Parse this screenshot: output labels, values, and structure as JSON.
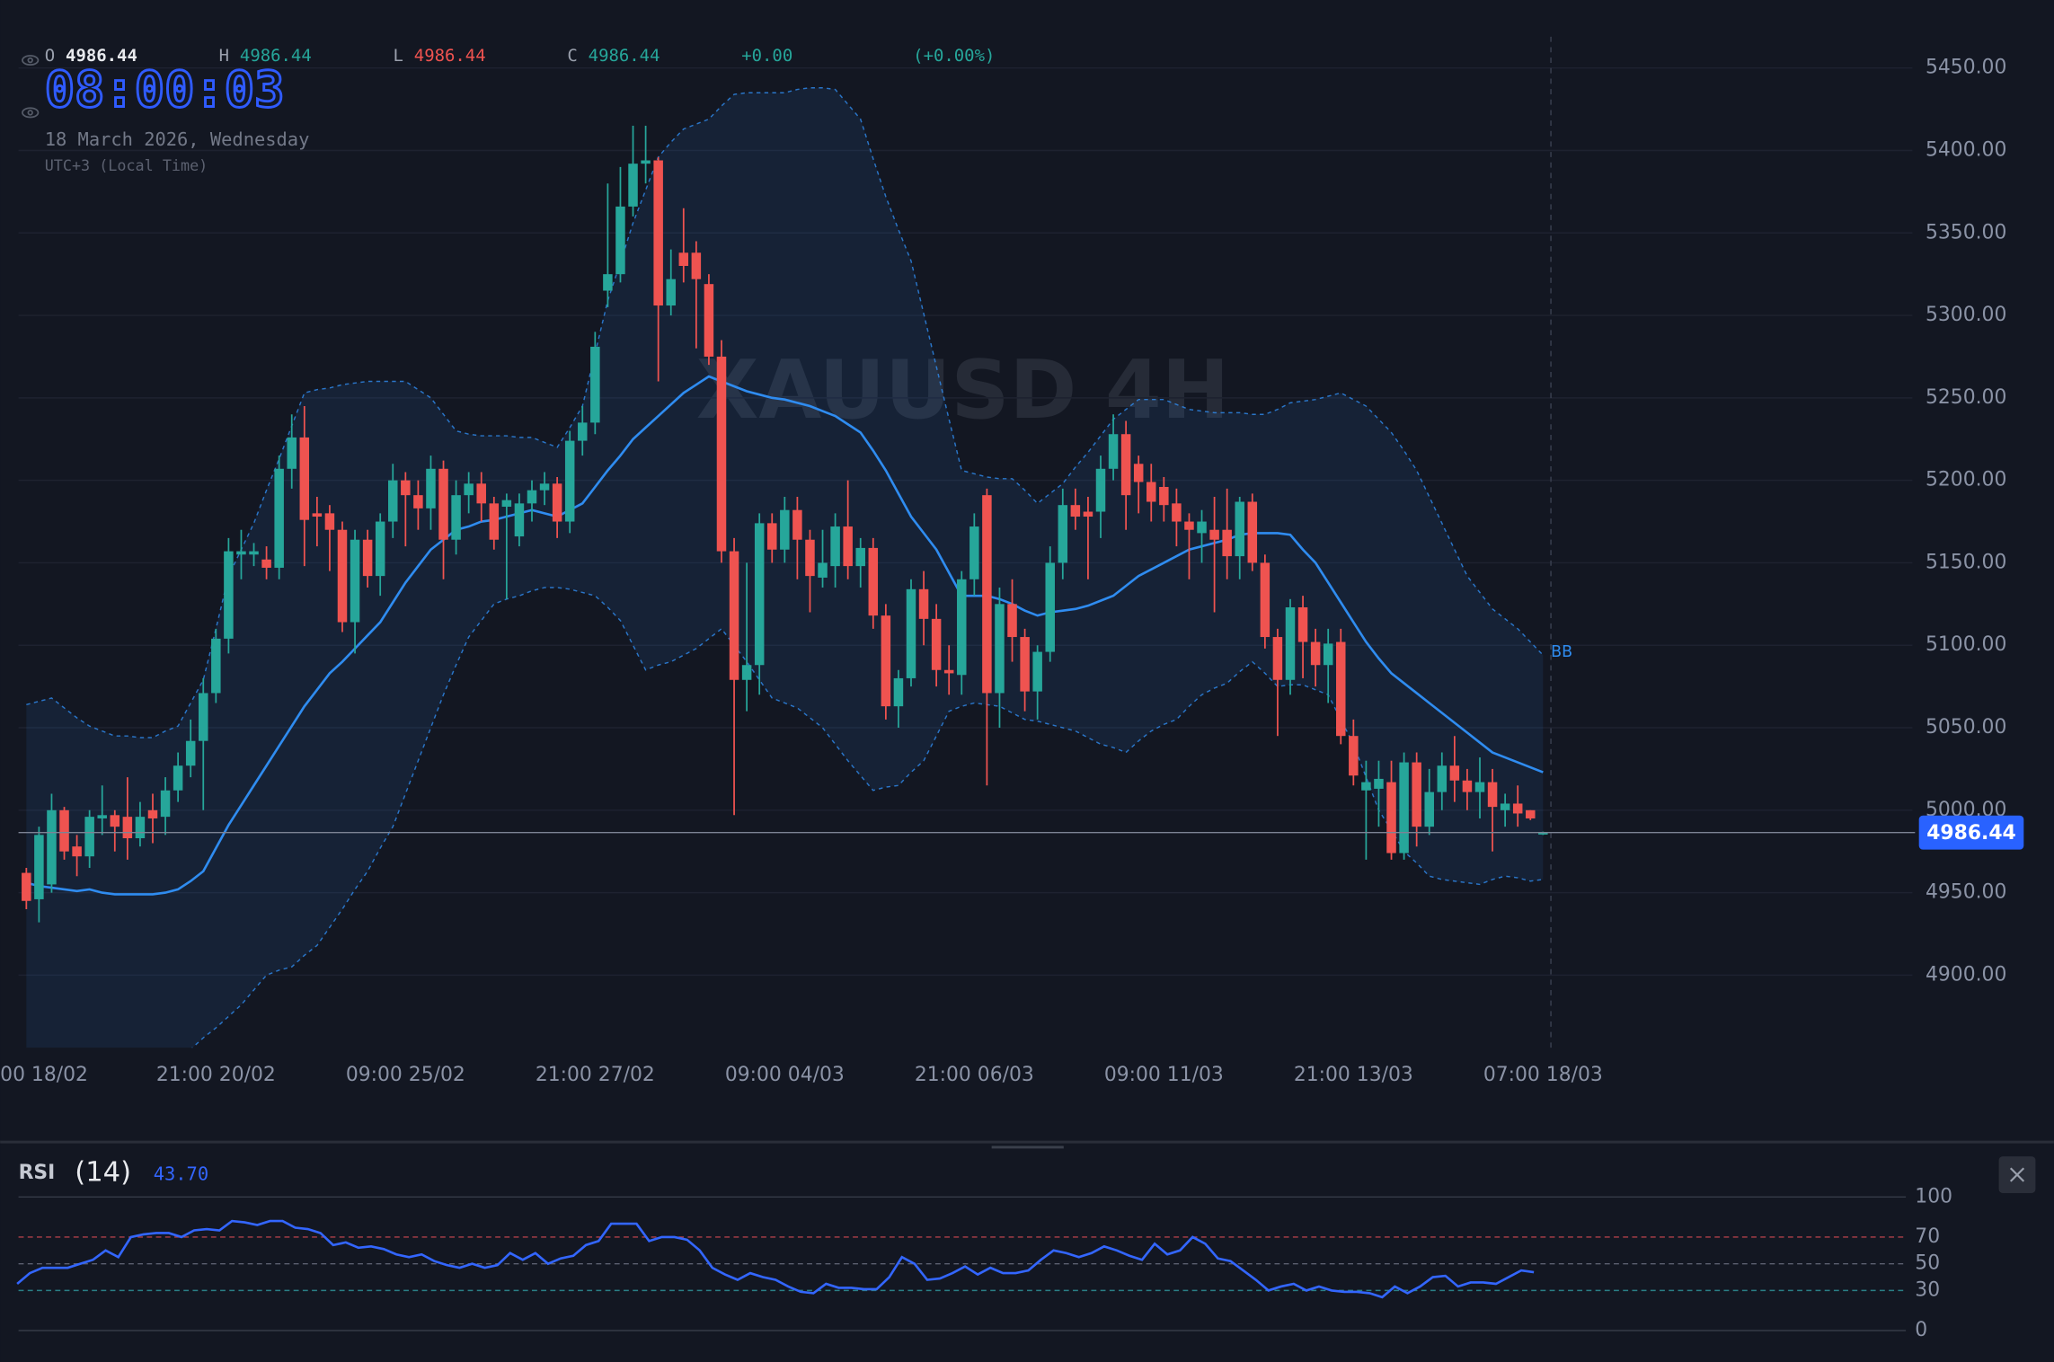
{
  "header": {
    "open_label": "O",
    "open": "4986.44",
    "high_label": "H",
    "high": "4986.44",
    "low_label": "L",
    "low": "4986.44",
    "close_label": "C",
    "close": "4986.44",
    "change": "+0.00",
    "change_pct": "(+0.00%)",
    "clock": "08:00:03",
    "date": "18 March 2026, Wednesday",
    "timezone": "UTC+3 (Local Time)"
  },
  "chart_data": [
    {
      "type": "candlestick",
      "watermark": "XAUUSD 4H",
      "categories": [
        "00 18/02",
        null,
        null,
        null,
        null,
        null,
        null,
        null,
        null,
        null,
        null,
        null,
        null,
        null,
        null,
        "21:00 20/02",
        null,
        null,
        null,
        null,
        null,
        null,
        null,
        null,
        null,
        null,
        null,
        null,
        null,
        null,
        "09:00 25/02",
        null,
        null,
        null,
        null,
        null,
        null,
        null,
        null,
        null,
        null,
        null,
        null,
        null,
        null,
        "21:00 27/02",
        null,
        null,
        null,
        null,
        null,
        null,
        null,
        null,
        null,
        null,
        null,
        null,
        null,
        null,
        "09:00 04/03",
        null,
        null,
        null,
        null,
        null,
        null,
        null,
        null,
        null,
        null,
        null,
        null,
        null,
        null,
        "21:00 06/03",
        null,
        null,
        null,
        null,
        null,
        null,
        null,
        null,
        null,
        null,
        null,
        null,
        null,
        null,
        "09:00 11/03",
        null,
        null,
        null,
        null,
        null,
        null,
        null,
        null,
        null,
        null,
        null,
        null,
        null,
        null,
        "21:00 13/03",
        null,
        null,
        null,
        null,
        null,
        null,
        null,
        null,
        null,
        null,
        null,
        null,
        null,
        null,
        "07:00 18/03"
      ],
      "open": [
        4962,
        4946,
        4955,
        5000,
        4978,
        4972,
        4995,
        4997,
        4996,
        4983,
        5000,
        4996,
        5012,
        5027,
        5042,
        5071,
        5104,
        5155,
        5155,
        5152,
        5147,
        5207,
        5226,
        5180,
        5180,
        5170,
        5114,
        5164,
        5142,
        5175,
        5200,
        5191,
        5183,
        5207,
        5164,
        5191,
        5198,
        5186,
        5184,
        5166,
        5186,
        5194,
        5198,
        5175,
        5224,
        5235,
        5315,
        5325,
        5366,
        5392,
        5394,
        5306,
        5338,
        5338,
        5319,
        5275,
        5157,
        5079,
        5088,
        5174,
        5158,
        5182,
        5164,
        5141,
        5148,
        5172,
        5148,
        5159,
        5118,
        5063,
        5080,
        5134,
        5116,
        5085,
        5082,
        5140,
        5191,
        5071,
        5125,
        5105,
        5072,
        5096,
        5150,
        5185,
        5181,
        5181,
        5207,
        5228,
        5210,
        5199,
        5196,
        5186,
        5175,
        5168,
        5170,
        5170,
        5154,
        5187,
        5150,
        5105,
        5079,
        5123,
        5102,
        5088,
        5102,
        5045,
        5012,
        5013,
        5017,
        4974,
        5029,
        4990,
        5011,
        5027,
        5018,
        5011,
        5017,
        5000,
        5004,
        5000,
        4986.44
      ],
      "high": [
        4965,
        4990,
        5010,
        5002,
        4985,
        5000,
        5015,
        5000,
        5020,
        5005,
        5010,
        5020,
        5035,
        5055,
        5080,
        5110,
        5165,
        5170,
        5162,
        5160,
        5215,
        5240,
        5245,
        5190,
        5185,
        5175,
        5170,
        5170,
        5180,
        5210,
        5205,
        5200,
        5215,
        5212,
        5200,
        5205,
        5205,
        5190,
        5192,
        5192,
        5200,
        5205,
        5202,
        5230,
        5245,
        5290,
        5380,
        5390,
        5415,
        5415,
        5396,
        5340,
        5365,
        5345,
        5325,
        5285,
        5165,
        5150,
        5180,
        5180,
        5190,
        5190,
        5170,
        5170,
        5180,
        5200,
        5165,
        5165,
        5125,
        5085,
        5140,
        5145,
        5125,
        5100,
        5145,
        5180,
        5195,
        5135,
        5140,
        5110,
        5100,
        5160,
        5195,
        5195,
        5190,
        5215,
        5240,
        5236,
        5215,
        5210,
        5202,
        5195,
        5180,
        5182,
        5190,
        5195,
        5190,
        5192,
        5155,
        5110,
        5128,
        5130,
        5110,
        5110,
        5110,
        5055,
        5030,
        5030,
        5030,
        5035,
        5035,
        5025,
        5035,
        5045,
        5025,
        5032,
        5025,
        5010,
        5015,
        5000,
        4987
      ],
      "low": [
        4940,
        4932,
        4950,
        4970,
        4960,
        4965,
        4985,
        4975,
        4970,
        4978,
        4980,
        4985,
        5005,
        5020,
        5000,
        5065,
        5095,
        5140,
        5148,
        5140,
        5140,
        5195,
        5148,
        5160,
        5145,
        5108,
        5095,
        5135,
        5130,
        5165,
        5160,
        5170,
        5170,
        5140,
        5155,
        5180,
        5175,
        5158,
        5128,
        5160,
        5175,
        5185,
        5165,
        5168,
        5215,
        5228,
        5305,
        5320,
        5360,
        5380,
        5260,
        5300,
        5320,
        5280,
        5270,
        5150,
        4997,
        5060,
        5070,
        5150,
        5150,
        5140,
        5120,
        5135,
        5135,
        5140,
        5135,
        5110,
        5055,
        5050,
        5075,
        5100,
        5075,
        5070,
        5070,
        5130,
        5015,
        5050,
        5090,
        5060,
        5055,
        5090,
        5140,
        5170,
        5140,
        5165,
        5200,
        5170,
        5180,
        5175,
        5175,
        5160,
        5140,
        5150,
        5120,
        5140,
        5140,
        5145,
        5098,
        5045,
        5070,
        5080,
        5075,
        5065,
        5040,
        5015,
        4970,
        4990,
        4970,
        4970,
        4978,
        4985,
        5000,
        5005,
        5000,
        4995,
        4975,
        4990,
        4990,
        4994,
        4985
      ],
      "close": [
        4945,
        4985,
        5000,
        4975,
        4972,
        4996,
        4997,
        4990,
        4983,
        4996,
        4995,
        5012,
        5027,
        5042,
        5071,
        5104,
        5157,
        5157,
        5157,
        5147,
        5207,
        5226,
        5176,
        5178,
        5170,
        5114,
        5164,
        5142,
        5175,
        5200,
        5191,
        5183,
        5207,
        5164,
        5191,
        5198,
        5186,
        5164,
        5188,
        5186,
        5194,
        5198,
        5175,
        5224,
        5235,
        5281,
        5325,
        5366,
        5392,
        5394,
        5306,
        5322,
        5330,
        5322,
        5275,
        5157,
        5079,
        5088,
        5174,
        5158,
        5182,
        5164,
        5142,
        5150,
        5172,
        5148,
        5159,
        5118,
        5063,
        5080,
        5134,
        5116,
        5085,
        5083,
        5140,
        5172,
        5071,
        5125,
        5105,
        5072,
        5096,
        5150,
        5185,
        5178,
        5178,
        5207,
        5228,
        5191,
        5199,
        5187,
        5185,
        5175,
        5170,
        5175,
        5164,
        5154,
        5187,
        5150,
        5105,
        5079,
        5123,
        5102,
        5088,
        5101,
        5045,
        5021,
        5017,
        5019,
        4974,
        5029,
        4990,
        5011,
        5027,
        5018,
        5011,
        5017,
        5002,
        5004,
        4998,
        4995,
        4986.44
      ],
      "up_color": "#26a69a",
      "down_color": "#ef5350",
      "bands": {
        "name": "BB",
        "color": "#2f8cf0",
        "upper": [
          5064,
          5066,
          5068,
          5062,
          5056,
          5051,
          5048,
          5045,
          5045,
          5044,
          5044,
          5048,
          5051,
          5065,
          5079,
          5110,
          5142,
          5158,
          5174,
          5194,
          5213,
          5233,
          5253,
          5255,
          5256,
          5258,
          5259,
          5260,
          5260,
          5260,
          5260,
          5255,
          5250,
          5240,
          5230,
          5228,
          5227,
          5227,
          5227,
          5226,
          5226,
          5223,
          5220,
          5232,
          5245,
          5277,
          5309,
          5332,
          5356,
          5376,
          5396,
          5405,
          5413,
          5416,
          5419,
          5427,
          5434,
          5435,
          5435,
          5435,
          5435,
          5437,
          5438,
          5438,
          5437,
          5428,
          5419,
          5395,
          5372,
          5352,
          5333,
          5301,
          5269,
          5237,
          5206,
          5204,
          5202,
          5201,
          5201,
          5194,
          5186,
          5192,
          5198,
          5208,
          5217,
          5227,
          5237,
          5243,
          5249,
          5249,
          5249,
          5246,
          5243,
          5242,
          5241,
          5241,
          5241,
          5240,
          5240,
          5243,
          5247,
          5248,
          5249,
          5251,
          5253,
          5249,
          5245,
          5237,
          5229,
          5218,
          5206,
          5190,
          5174,
          5158,
          5142,
          5132,
          5122,
          5116,
          5110,
          5102,
          5094
        ],
        "middle": [
          4956,
          4954,
          4953,
          4952,
          4951,
          4952,
          4950,
          4949,
          4949,
          4949,
          4949,
          4950,
          4952,
          4957,
          4963,
          4977,
          4991,
          5003,
          5015,
          5027,
          5039,
          5051,
          5063,
          5073,
          5083,
          5090,
          5098,
          5106,
          5114,
          5126,
          5138,
          5148,
          5158,
          5164,
          5170,
          5172,
          5175,
          5176,
          5178,
          5180,
          5182,
          5180,
          5178,
          5182,
          5186,
          5196,
          5206,
          5215,
          5225,
          5232,
          5239,
          5246,
          5253,
          5258,
          5263,
          5260,
          5257,
          5254,
          5252,
          5250,
          5249,
          5247,
          5245,
          5242,
          5239,
          5234,
          5229,
          5218,
          5206,
          5192,
          5178,
          5168,
          5158,
          5144,
          5130,
          5130,
          5130,
          5128,
          5125,
          5121,
          5118,
          5120,
          5121,
          5122,
          5124,
          5127,
          5130,
          5136,
          5142,
          5146,
          5150,
          5154,
          5158,
          5160,
          5162,
          5164,
          5167,
          5168,
          5168,
          5168,
          5167,
          5158,
          5150,
          5138,
          5126,
          5114,
          5102,
          5092,
          5083,
          5077,
          5071,
          5065,
          5059,
          5053,
          5047,
          5041,
          5035,
          5032,
          5029,
          5026,
          5023
        ],
        "lower": [
          4830,
          4828,
          4826,
          4824,
          4822,
          4820,
          4820,
          4820,
          4820,
          4820,
          4820,
          4832,
          4844,
          4855,
          4862,
          4868,
          4875,
          4882,
          4891,
          4900,
          4903,
          4905,
          4912,
          4918,
          4929,
          4940,
          4952,
          4963,
          4977,
          4990,
          5010,
          5030,
          5050,
          5070,
          5088,
          5105,
          5115,
          5125,
          5128,
          5130,
          5133,
          5135,
          5135,
          5134,
          5132,
          5130,
          5123,
          5115,
          5100,
          5085,
          5088,
          5090,
          5094,
          5098,
          5104,
          5110,
          5100,
          5090,
          5079,
          5068,
          5065,
          5062,
          5056,
          5050,
          5040,
          5030,
          5021,
          5012,
          5014,
          5015,
          5023,
          5030,
          5045,
          5060,
          5063,
          5065,
          5064,
          5063,
          5059,
          5055,
          5054,
          5052,
          5050,
          5048,
          5044,
          5040,
          5038,
          5035,
          5042,
          5048,
          5052,
          5055,
          5063,
          5070,
          5074,
          5077,
          5084,
          5090,
          5083,
          5075,
          5076,
          5076,
          5073,
          5070,
          5055,
          5040,
          5020,
          5000,
          4988,
          4975,
          4968,
          4960,
          4958,
          4957,
          4956,
          4955,
          4958,
          4960,
          4959,
          4957,
          4958
        ]
      },
      "ylim": [
        4856,
        5469
      ],
      "yticks": [
        {
          "value": 4900,
          "label": "4900.00"
        },
        {
          "value": 4950,
          "label": "4950.00"
        },
        {
          "value": 5000,
          "label": "5000.00"
        },
        {
          "value": 5050,
          "label": "5050.00"
        },
        {
          "value": 5100,
          "label": "5100.00"
        },
        {
          "value": 5150,
          "label": "5150.00"
        },
        {
          "value": 5200,
          "label": "5200.00"
        },
        {
          "value": 5250,
          "label": "5250.00"
        },
        {
          "value": 5300,
          "label": "5300.00"
        },
        {
          "value": 5350,
          "label": "5350.00"
        },
        {
          "value": 5400,
          "label": "5400.00"
        },
        {
          "value": 5450,
          "label": "5450.00"
        }
      ],
      "grid": true,
      "last_price": 4986.44
    },
    {
      "type": "line",
      "title": "RSI",
      "subtitle": "(14)",
      "current": "43.70",
      "series": [
        {
          "color": "#3366ff",
          "values": [
            35,
            43,
            47,
            47,
            47,
            50,
            53,
            60,
            55,
            70,
            72,
            73,
            73,
            70,
            75,
            76,
            75,
            82,
            81,
            79,
            82,
            82,
            77,
            76,
            73,
            64,
            66,
            62,
            63,
            61,
            57,
            55,
            57,
            52,
            49,
            47,
            50,
            47,
            49,
            58,
            53,
            58,
            50,
            54,
            56,
            64,
            67,
            80,
            80,
            80,
            67,
            70,
            70,
            68,
            60,
            47,
            42,
            38,
            43,
            40,
            38,
            33,
            29,
            28,
            35,
            32,
            32,
            31,
            31,
            40,
            55,
            50,
            38,
            39,
            43,
            48,
            42,
            47,
            43,
            43,
            45,
            53,
            60,
            58,
            55,
            58,
            63,
            60,
            56,
            53,
            65,
            57,
            60,
            70,
            65,
            54,
            52,
            45,
            38,
            30,
            33,
            35,
            30,
            33,
            30,
            29,
            29,
            28,
            25,
            33,
            28,
            33,
            40,
            41,
            33,
            36,
            36,
            35,
            40,
            45,
            43.7
          ]
        }
      ],
      "ylim": [
        0,
        100
      ],
      "yticks": [
        0,
        30,
        50,
        70,
        100
      ],
      "grid_colors": [
        "#363b47",
        "#2a7f86",
        "#5b6070",
        "#b0404a",
        "#363b47"
      ]
    }
  ]
}
